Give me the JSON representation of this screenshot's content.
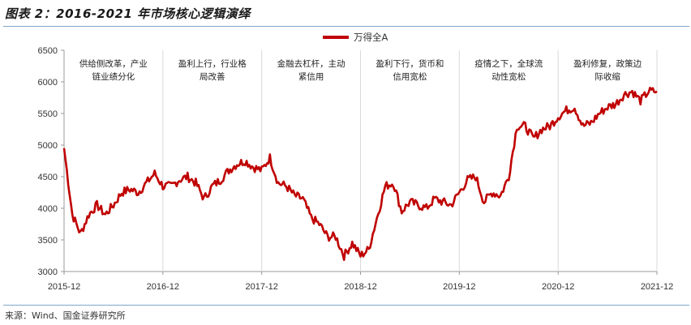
{
  "figure": {
    "title": "图表 2：2016-2021 年市场核心逻辑演绎",
    "source": "来源：Wind、国金证券研究所"
  },
  "chart_data": {
    "type": "line",
    "title": "",
    "xlabel": "",
    "ylabel": "",
    "ylim": [
      3000,
      6500
    ],
    "yticks": [
      3000,
      3500,
      4000,
      4500,
      5000,
      5500,
      6000,
      6500
    ],
    "xticks": [
      "2015-12",
      "2016-12",
      "2017-12",
      "2018-12",
      "2019-12",
      "2020-12",
      "2021-12"
    ],
    "grid": "vertical dividers at year boundaries",
    "legend_position": "top-center",
    "color": "#c00000",
    "series": [
      {
        "name": "万得全A",
        "points": [
          [
            "2015-12",
            4950
          ],
          [
            "2016-01",
            3900
          ],
          [
            "2016-02",
            3600
          ],
          [
            "2016-03",
            3900
          ],
          [
            "2016-04",
            4050
          ],
          [
            "2016-05",
            3900
          ],
          [
            "2016-06",
            4050
          ],
          [
            "2016-07",
            4250
          ],
          [
            "2016-08",
            4300
          ],
          [
            "2016-09",
            4250
          ],
          [
            "2016-10",
            4400
          ],
          [
            "2016-11",
            4550
          ],
          [
            "2016-12",
            4350
          ],
          [
            "2017-01",
            4350
          ],
          [
            "2017-02",
            4450
          ],
          [
            "2017-03",
            4500
          ],
          [
            "2017-04",
            4400
          ],
          [
            "2017-05",
            4150
          ],
          [
            "2017-06",
            4350
          ],
          [
            "2017-07",
            4450
          ],
          [
            "2017-08",
            4600
          ],
          [
            "2017-09",
            4700
          ],
          [
            "2017-10",
            4750
          ],
          [
            "2017-11",
            4650
          ],
          [
            "2017-12",
            4600
          ],
          [
            "2018-01",
            4800
          ],
          [
            "2018-02",
            4400
          ],
          [
            "2018-03",
            4350
          ],
          [
            "2018-04",
            4200
          ],
          [
            "2018-05",
            4150
          ],
          [
            "2018-06",
            3850
          ],
          [
            "2018-07",
            3750
          ],
          [
            "2018-08",
            3550
          ],
          [
            "2018-09",
            3550
          ],
          [
            "2018-10",
            3250
          ],
          [
            "2018-11",
            3450
          ],
          [
            "2018-12",
            3250
          ],
          [
            "2019-01",
            3350
          ],
          [
            "2019-02",
            3850
          ],
          [
            "2019-03",
            4350
          ],
          [
            "2019-04",
            4400
          ],
          [
            "2019-05",
            3950
          ],
          [
            "2019-06",
            4100
          ],
          [
            "2019-07",
            4050
          ],
          [
            "2019-08",
            4000
          ],
          [
            "2019-09",
            4150
          ],
          [
            "2019-10",
            4100
          ],
          [
            "2019-11",
            4050
          ],
          [
            "2019-12",
            4250
          ],
          [
            "2020-01",
            4450
          ],
          [
            "2020-02",
            4500
          ],
          [
            "2020-03",
            4100
          ],
          [
            "2020-04",
            4250
          ],
          [
            "2020-05",
            4200
          ],
          [
            "2020-06",
            4500
          ],
          [
            "2020-07",
            5300
          ],
          [
            "2020-08",
            5300
          ],
          [
            "2020-09",
            5100
          ],
          [
            "2020-10",
            5250
          ],
          [
            "2020-11",
            5300
          ],
          [
            "2020-12",
            5450
          ],
          [
            "2021-01",
            5550
          ],
          [
            "2021-02",
            5600
          ],
          [
            "2021-03",
            5300
          ],
          [
            "2021-04",
            5350
          ],
          [
            "2021-05",
            5500
          ],
          [
            "2021-06",
            5600
          ],
          [
            "2021-07",
            5650
          ],
          [
            "2021-08",
            5800
          ],
          [
            "2021-09",
            5850
          ],
          [
            "2021-10",
            5700
          ],
          [
            "2021-11",
            5850
          ],
          [
            "2021-12",
            5850
          ]
        ]
      }
    ],
    "annotations": [
      {
        "period": "2016",
        "lines": [
          "供给侧改革，产业",
          "链业绩分化"
        ]
      },
      {
        "period": "2017",
        "lines": [
          "盈利上行，行业格",
          "局改善"
        ]
      },
      {
        "period": "2018",
        "lines": [
          "金融去杠杆，主动",
          "紧信用"
        ]
      },
      {
        "period": "2019",
        "lines": [
          "盈利下行，货币和",
          "信用宽松"
        ]
      },
      {
        "period": "2020",
        "lines": [
          "疫情之下，全球流",
          "动性宽松"
        ]
      },
      {
        "period": "2021",
        "lines": [
          "盈利修复，政策边",
          "际收缩"
        ]
      }
    ]
  }
}
